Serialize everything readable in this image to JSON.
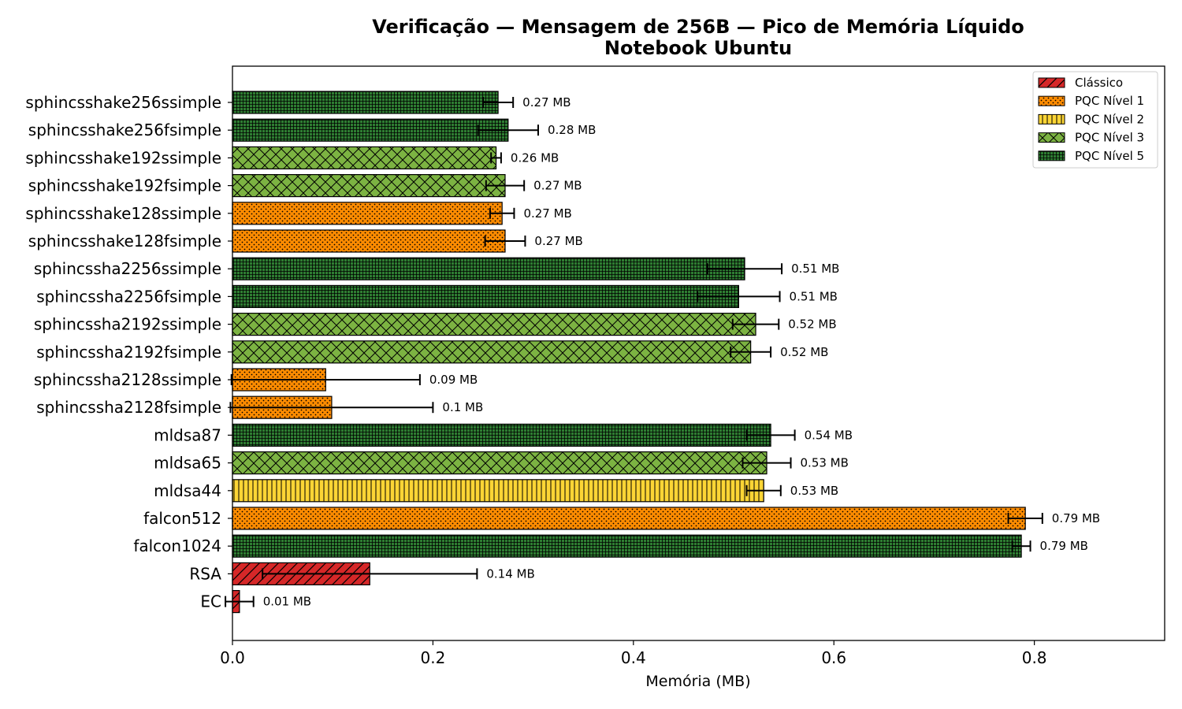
{
  "chart_data": {
    "type": "bar",
    "orientation": "horizontal",
    "title": "Verificação — Mensagem de 256B — Pico de Memória Líquido",
    "subtitle": "Notebook Ubuntu",
    "xlabel": "Memória (MB)",
    "ylabel": "",
    "xlim": [
      0,
      0.93
    ],
    "xticks": [
      "0.0",
      "0.2",
      "0.4",
      "0.6",
      "0.8"
    ],
    "grid": false,
    "legend_position": "top-right",
    "legend": [
      {
        "name": "Clássico",
        "color": "#d62728",
        "hatch": "diagonal"
      },
      {
        "name": "PQC Nível 1",
        "color": "#ff8c00",
        "hatch": "dots"
      },
      {
        "name": "PQC Nível 2",
        "color": "#fcd535",
        "hatch": "vertical"
      },
      {
        "name": "PQC Nível 3",
        "color": "#7cb342",
        "hatch": "cross"
      },
      {
        "name": "PQC Nível 5",
        "color": "#2e7d32",
        "hatch": "grid"
      }
    ],
    "bars": [
      {
        "category": "sphincsshake256ssimple",
        "value": 0.265,
        "error": 0.015,
        "label": "0.27 MB",
        "group": "PQC Nível 5"
      },
      {
        "category": "sphincsshake256fsimple",
        "value": 0.275,
        "error": 0.03,
        "label": "0.28 MB",
        "group": "PQC Nível 5"
      },
      {
        "category": "sphincsshake192ssimple",
        "value": 0.263,
        "error": 0.005,
        "label": "0.26 MB",
        "group": "PQC Nível 3"
      },
      {
        "category": "sphincsshake192fsimple",
        "value": 0.272,
        "error": 0.019,
        "label": "0.27 MB",
        "group": "PQC Nível 3"
      },
      {
        "category": "sphincsshake128ssimple",
        "value": 0.269,
        "error": 0.012,
        "label": "0.27 MB",
        "group": "PQC Nível 1"
      },
      {
        "category": "sphincsshake128fsimple",
        "value": 0.272,
        "error": 0.02,
        "label": "0.27 MB",
        "group": "PQC Nível 1"
      },
      {
        "category": "sphincssha2256ssimple",
        "value": 0.511,
        "error": 0.037,
        "label": "0.51 MB",
        "group": "PQC Nível 5"
      },
      {
        "category": "sphincssha2256fsimple",
        "value": 0.505,
        "error": 0.041,
        "label": "0.51 MB",
        "group": "PQC Nível 5"
      },
      {
        "category": "sphincssha2192ssimple",
        "value": 0.522,
        "error": 0.023,
        "label": "0.52 MB",
        "group": "PQC Nível 3"
      },
      {
        "category": "sphincssha2192fsimple",
        "value": 0.517,
        "error": 0.02,
        "label": "0.52 MB",
        "group": "PQC Nível 3"
      },
      {
        "category": "sphincssha2128ssimple",
        "value": 0.093,
        "error": 0.094,
        "label": "0.09 MB",
        "group": "PQC Nível 1"
      },
      {
        "category": "sphincssha2128fsimple",
        "value": 0.099,
        "error": 0.101,
        "label": "0.1 MB",
        "group": "PQC Nível 1"
      },
      {
        "category": "mldsa87",
        "value": 0.537,
        "error": 0.024,
        "label": "0.54 MB",
        "group": "PQC Nível 5"
      },
      {
        "category": "mldsa65",
        "value": 0.533,
        "error": 0.024,
        "label": "0.53 MB",
        "group": "PQC Nível 3"
      },
      {
        "category": "mldsa44",
        "value": 0.53,
        "error": 0.017,
        "label": "0.53 MB",
        "group": "PQC Nível 2"
      },
      {
        "category": "falcon512",
        "value": 0.791,
        "error": 0.017,
        "label": "0.79 MB",
        "group": "PQC Nível 1"
      },
      {
        "category": "falcon1024",
        "value": 0.787,
        "error": 0.009,
        "label": "0.79 MB",
        "group": "PQC Nível 5"
      },
      {
        "category": "RSA",
        "value": 0.137,
        "error": 0.107,
        "label": "0.14 MB",
        "group": "Clássico"
      },
      {
        "category": "EC",
        "value": 0.007,
        "error": 0.014,
        "label": "0.01 MB",
        "group": "Clássico"
      }
    ]
  }
}
